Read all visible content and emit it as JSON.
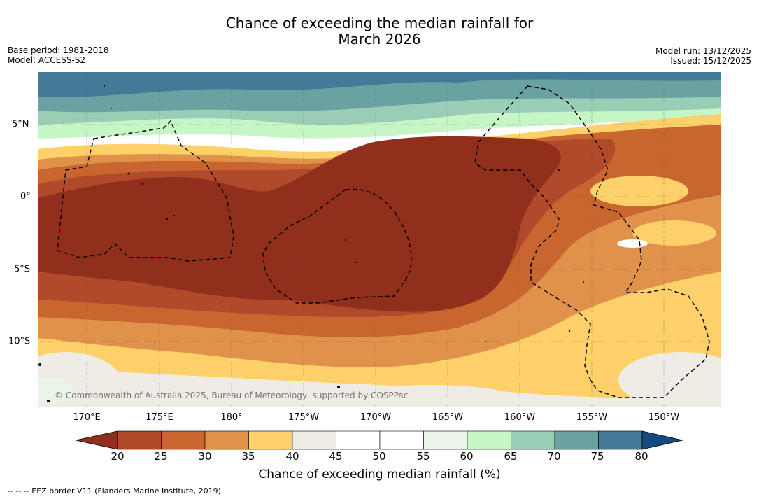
{
  "title_line1": "Chance of exceeding the median rainfall for",
  "title_line2": "March 2026",
  "base_period": "Base period: 1981-2018",
  "model": "Model: ACCESS-S2",
  "model_run": "Model run: 13/12/2025",
  "issued": "Issued: 15/12/2025",
  "lon_labels": [
    "170°E",
    "175°E",
    "180°",
    "175°W",
    "170°W",
    "165°W",
    "160°W",
    "155°W",
    "150°W"
  ],
  "lat_labels": [
    "5°N",
    "0°",
    "5°S",
    "10°S"
  ],
  "copyright": "© Commonwealth of Australia 2025, Bureau of Meteorology, supported by COSPPac",
  "colorbar": {
    "title": "Chance of exceeding median rainfall (%)",
    "ticks": [
      "20",
      "25",
      "30",
      "35",
      "40",
      "45",
      "50",
      "55",
      "60",
      "65",
      "70",
      "75",
      "80"
    ],
    "colors": [
      "#8f2f1c",
      "#b04a2a",
      "#c9652f",
      "#e0924a",
      "#fdd06a",
      "#efece6",
      "#ffffff",
      "#ffffff",
      "#eaf5ea",
      "#c6f5c6",
      "#9acdb6",
      "#6aa2a2",
      "#427a98",
      "#134a82"
    ]
  },
  "legend_note": "--  --  -- EEZ border V11 (Flanders Marine Institute, 2019)."
}
